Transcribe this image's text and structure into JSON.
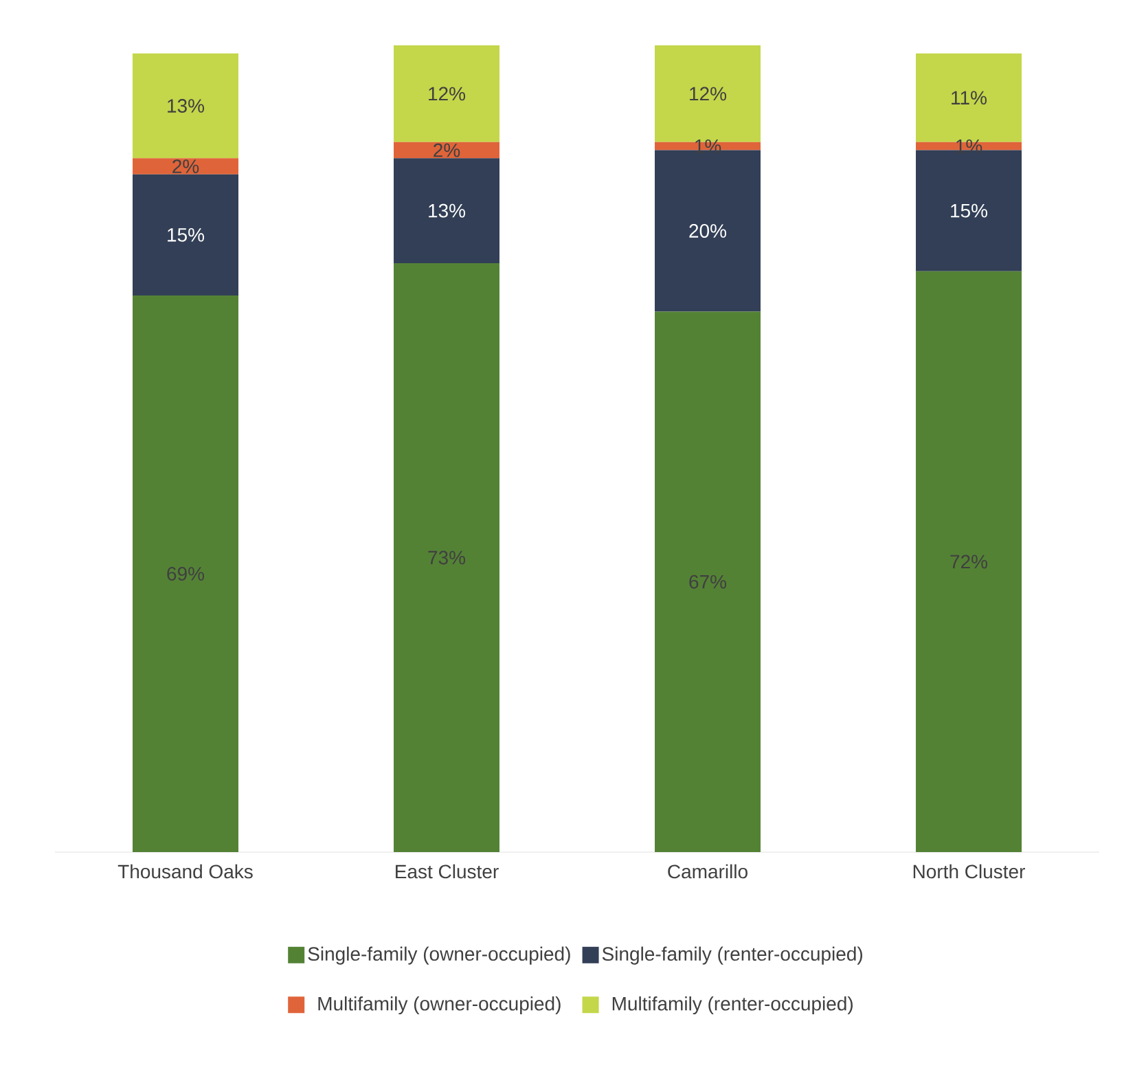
{
  "chart_data": {
    "type": "bar",
    "stacked": true,
    "legend": "bottom",
    "ylim": [
      0,
      100
    ],
    "tick_labels": "x",
    "categories": [
      "Thousand Oaks",
      "East Cluster",
      "Camarillo",
      "North Cluster"
    ],
    "series": [
      {
        "name": "Single-family (owner-occupied)",
        "color": "#548235",
        "values": [
          69,
          73,
          67,
          72
        ],
        "value_labels": [
          "69%",
          "73%",
          "67%",
          "72%"
        ]
      },
      {
        "name": "Single-family (renter-occupied)",
        "color": "#323f56",
        "values": [
          15,
          13,
          20,
          15
        ],
        "value_labels": [
          "15%",
          "13%",
          "20%",
          "15%"
        ]
      },
      {
        "name": "Multifamily (owner-occupied)",
        "color": "#e0643a",
        "values": [
          2,
          2,
          1,
          1
        ],
        "value_labels": [
          "2%",
          "2%",
          "1%",
          "1%"
        ]
      },
      {
        "name": "Multifamily (renter-occupied)",
        "color": "#c4d64a",
        "values": [
          13,
          12,
          12,
          11
        ],
        "value_labels": [
          "13%",
          "12%",
          "12%",
          "11%"
        ]
      }
    ]
  }
}
